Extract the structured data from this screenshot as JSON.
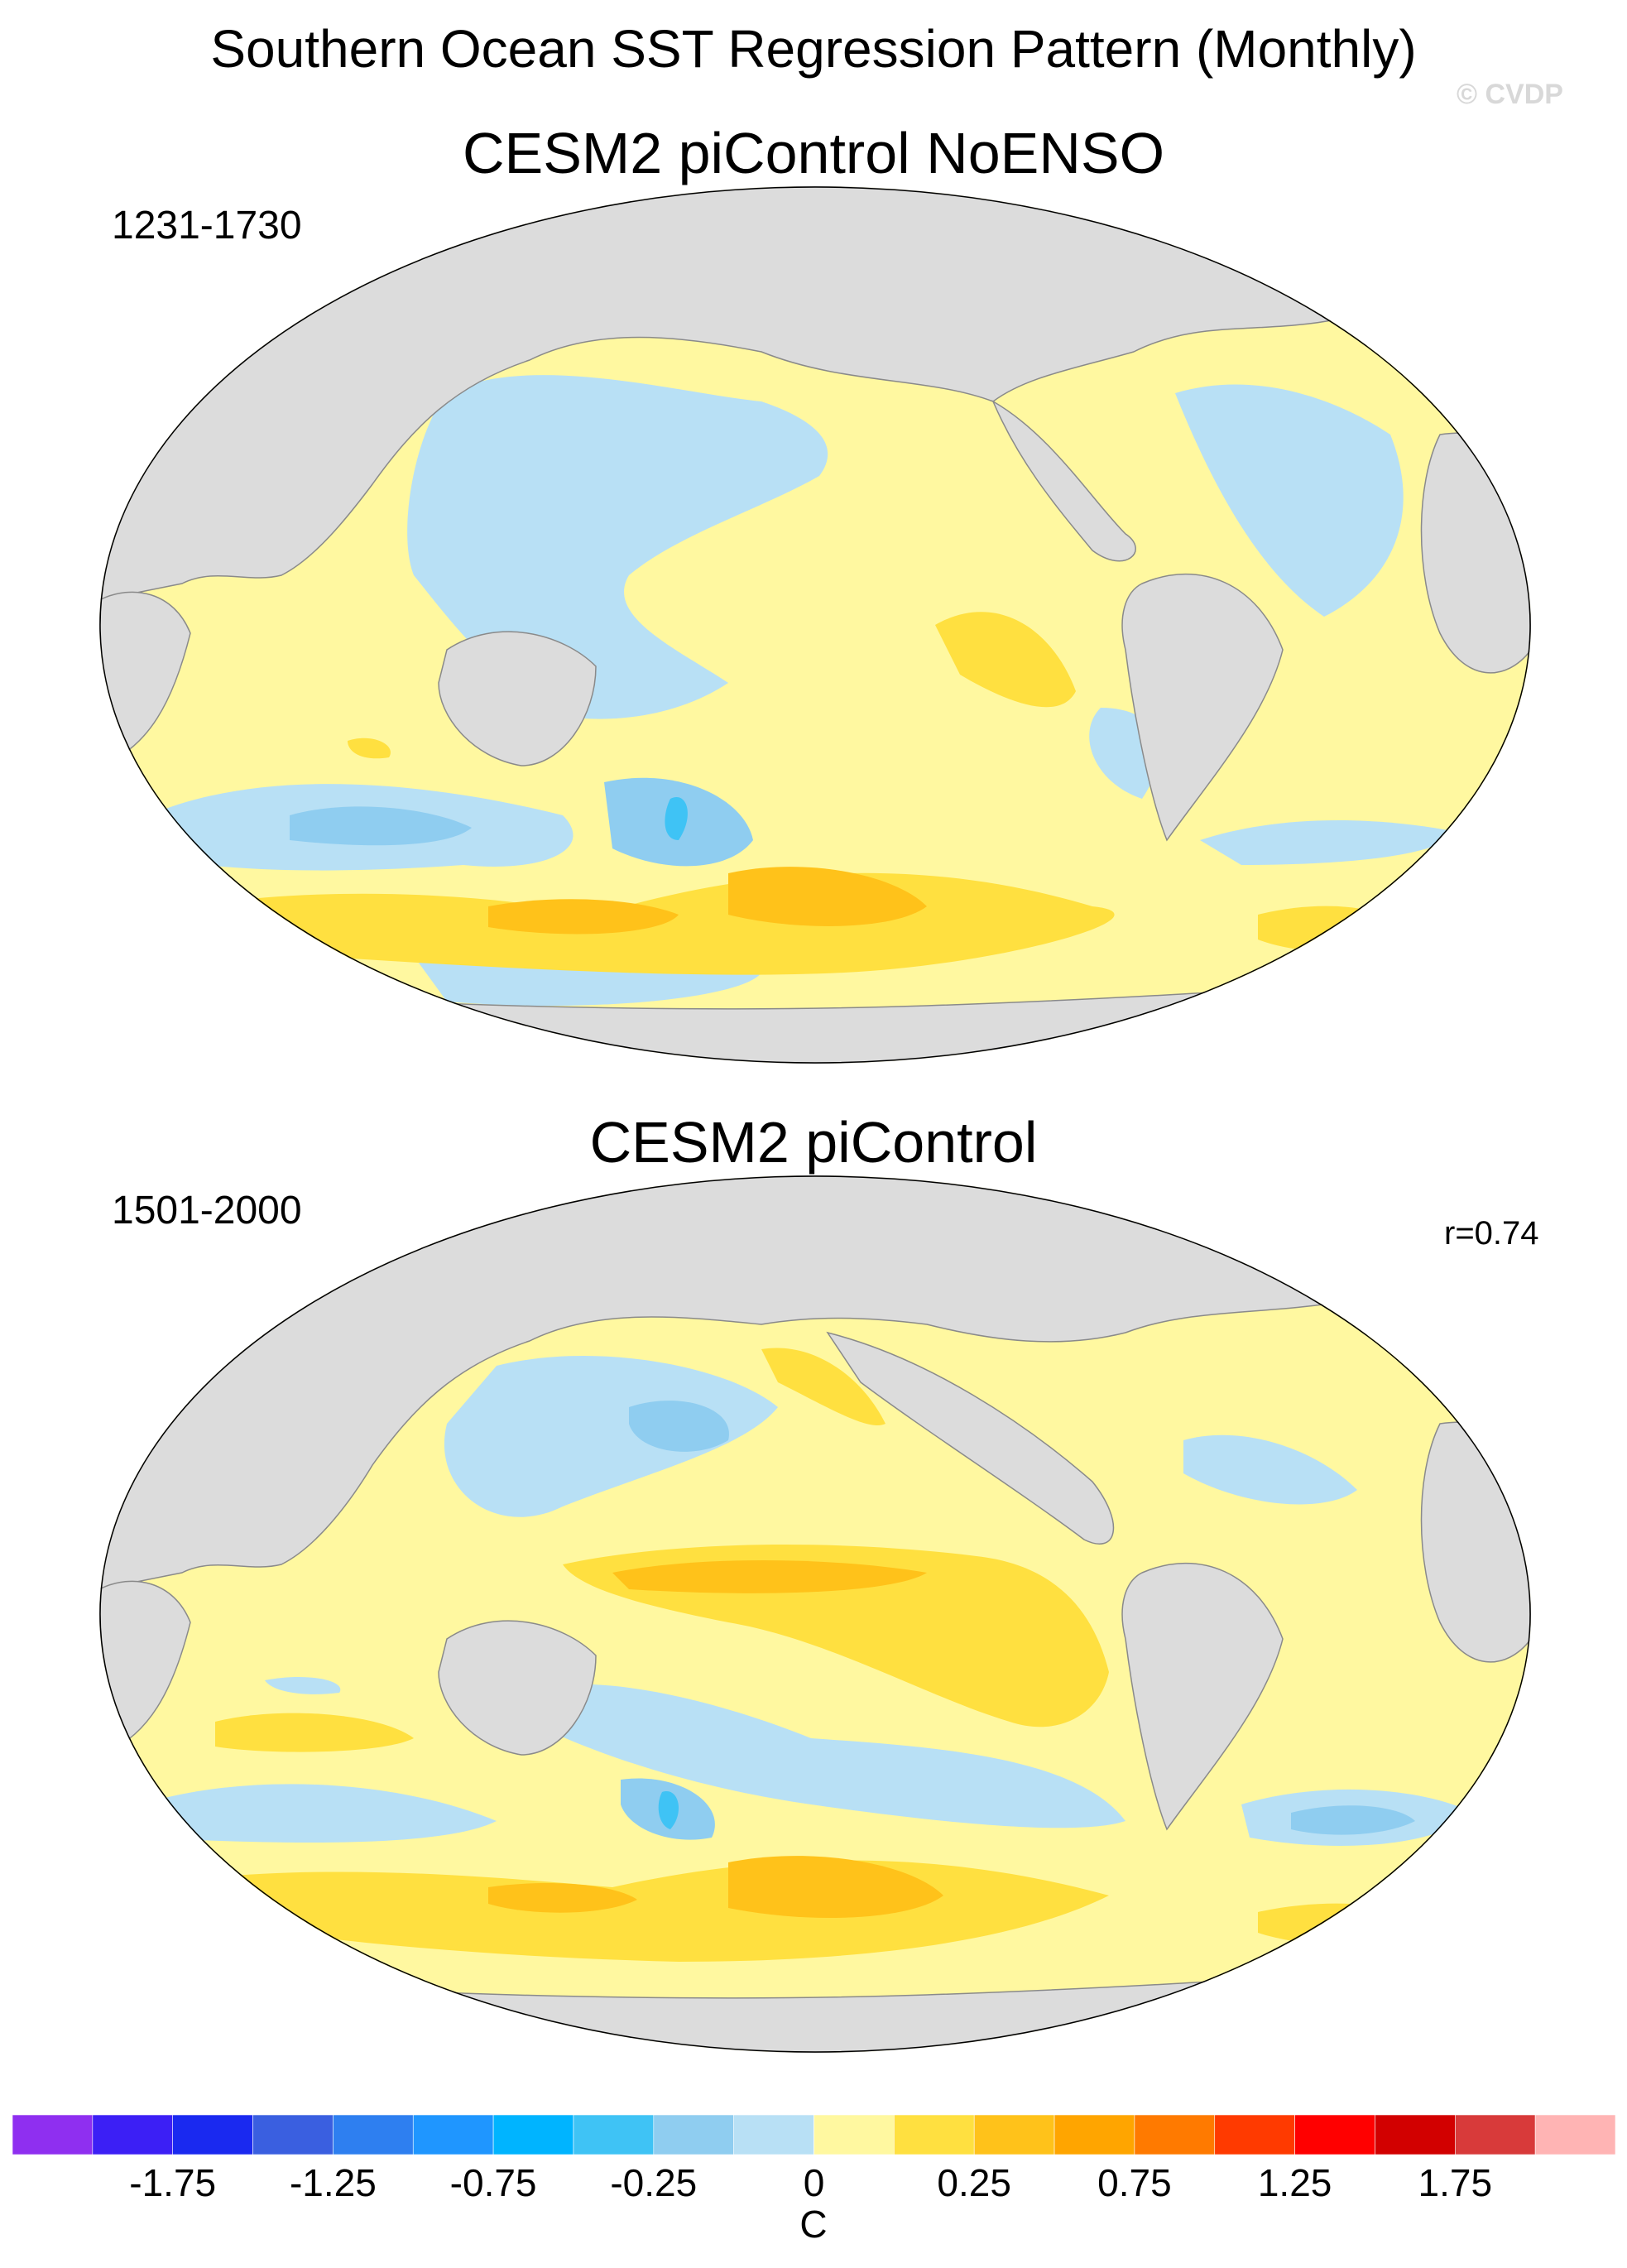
{
  "title": "Southern Ocean SST Regression Pattern (Monthly)",
  "copyright": "© CVDP",
  "panels": [
    {
      "title": "CESM2 piControl NoENSO",
      "period": "1231-1730",
      "corr": ""
    },
    {
      "title": "CESM2 piControl",
      "period": "1501-2000",
      "corr": "r=0.74"
    }
  ],
  "colorbar": {
    "colors": [
      "#8f2ff0",
      "#3c1ff5",
      "#1a29f0",
      "#3a5fe0",
      "#2e7ff0",
      "#1f96ff",
      "#00b4ff",
      "#3fc3f5",
      "#8fcdf0",
      "#b8e0f5",
      "#fff8a0",
      "#ffe040",
      "#ffc21a",
      "#ffa500",
      "#ff7a00",
      "#ff3a00",
      "#ff0000",
      "#d20000",
      "#d83a3a",
      "#ffb4b4"
    ],
    "labels": [
      "-1.75",
      "-1.25",
      "-0.75",
      "-0.25",
      "0",
      "0.25",
      "0.75",
      "1.25",
      "1.75"
    ],
    "units": "C"
  },
  "map_colors": {
    "land": "#dcdcdc",
    "ocean_base": "#fff8a0",
    "coast": "#8a8a8a"
  }
}
